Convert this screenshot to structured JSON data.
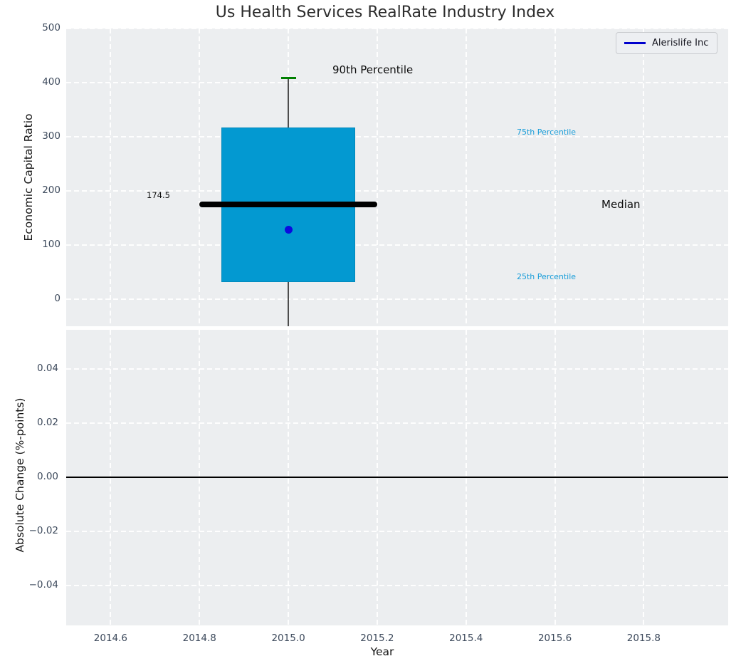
{
  "title": "Us Health Services RealRate Industry Index",
  "legend": {
    "label": "Alerislife Inc",
    "line_color": "#0000cd",
    "position": "upper right"
  },
  "colors": {
    "axes_background": "#eceef0",
    "grid": "#ffffff",
    "box_fill": "#0399d1",
    "median_line": "#000000",
    "percentile_cap": "#007f00",
    "company_point": "#0b0bdf",
    "percentile_text": "#199dd9",
    "tick_text": "#3d4a5c"
  },
  "chart_data": [
    {
      "type": "boxplot",
      "title": "Us Health Services RealRate Industry Index",
      "ylabel": "Economic Capital Ratio",
      "xlabel": "",
      "grid": true,
      "xlim": [
        2014.5,
        2015.99
      ],
      "ylim": [
        -50,
        500
      ],
      "x": 2015.0,
      "box_width_years": 0.3,
      "median_line_span_years": [
        2014.8,
        2015.2
      ],
      "stats": {
        "p90": 408.5,
        "p75": 317,
        "median": 174.5,
        "p25": 31,
        "whisker_low_visible": -50
      },
      "company_point": {
        "name": "Alerislife Inc",
        "year": 2015.0,
        "value": 128
      },
      "annotations": {
        "p90_label": "90th Percentile",
        "p75_label": "75th Percentile",
        "median_label": "Median",
        "p25_label": "25th Percentile",
        "median_value_label": "174.5"
      },
      "y_ticks": [
        {
          "v": 500,
          "label": "500"
        },
        {
          "v": 400,
          "label": "400"
        },
        {
          "v": 300,
          "label": "300"
        },
        {
          "v": 200,
          "label": "200"
        },
        {
          "v": 100,
          "label": "100"
        },
        {
          "v": 0,
          "label": "0"
        }
      ],
      "x_ticks": [
        {
          "v": 2014.6,
          "label": "2014.6"
        },
        {
          "v": 2014.8,
          "label": "2014.8"
        },
        {
          "v": 2015.0,
          "label": "2015.0"
        },
        {
          "v": 2015.2,
          "label": "2015.2"
        },
        {
          "v": 2015.4,
          "label": "2015.4"
        },
        {
          "v": 2015.6,
          "label": "2015.6"
        },
        {
          "v": 2015.8,
          "label": "2015.8"
        }
      ]
    },
    {
      "type": "line",
      "ylabel": "Absolute Change (%-points)",
      "xlabel": "Year",
      "grid": true,
      "xlim": [
        2014.5,
        2015.99
      ],
      "ylim": [
        -0.0547,
        0.0545
      ],
      "zero_line": 0.0,
      "series": [
        {
          "name": "Alerislife Inc",
          "x": [],
          "y": []
        }
      ],
      "y_ticks": [
        {
          "v": 0.04,
          "label": "0.04"
        },
        {
          "v": 0.02,
          "label": "0.02"
        },
        {
          "v": 0.0,
          "label": "0.00"
        },
        {
          "v": -0.02,
          "label": "−0.02"
        },
        {
          "v": -0.04,
          "label": "−0.04"
        }
      ],
      "x_ticks": [
        {
          "v": 2014.6,
          "label": "2014.6"
        },
        {
          "v": 2014.8,
          "label": "2014.8"
        },
        {
          "v": 2015.0,
          "label": "2015.0"
        },
        {
          "v": 2015.2,
          "label": "2015.2"
        },
        {
          "v": 2015.4,
          "label": "2015.4"
        },
        {
          "v": 2015.6,
          "label": "2015.6"
        },
        {
          "v": 2015.8,
          "label": "2015.8"
        }
      ]
    }
  ]
}
